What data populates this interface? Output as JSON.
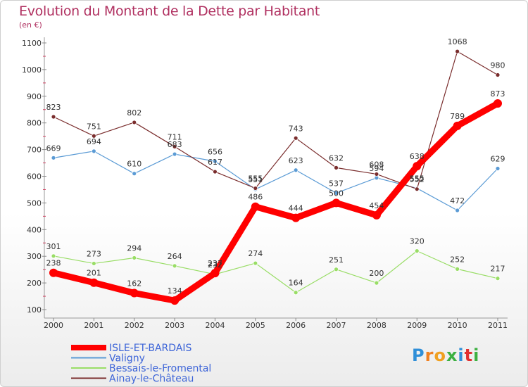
{
  "header": {
    "title": "Evolution du Montant de la Dette par Habitant",
    "subtitle": "(en €)"
  },
  "logo": {
    "text": "Proxiti",
    "letters": [
      {
        "ch": "P",
        "color": "#2f8fd8"
      },
      {
        "ch": "r",
        "color": "#f08020"
      },
      {
        "ch": "o",
        "color": "#f0a020"
      },
      {
        "ch": "x",
        "color": "#3cb040"
      },
      {
        "ch": "i",
        "color": "#2f8fd8"
      },
      {
        "ch": "t",
        "color": "#e03030"
      },
      {
        "ch": "i",
        "color": "#3cb040"
      }
    ]
  },
  "chart_data": {
    "type": "line",
    "title": "Evolution du Montant de la Dette par Habitant",
    "ylabel": "(en €)",
    "xlabel": "",
    "ylim": [
      100,
      1100
    ],
    "yticks": [
      100,
      200,
      300,
      400,
      500,
      600,
      700,
      800,
      900,
      1000,
      1100
    ],
    "categories": [
      "2000",
      "2001",
      "2002",
      "2003",
      "2004",
      "2005",
      "2006",
      "2007",
      "2008",
      "2009",
      "2010",
      "2011"
    ],
    "grid": false,
    "legend_position": "bottom-left",
    "series": [
      {
        "name": "ISLE-ET-BARDAIS",
        "color": "#ff0000",
        "emphasis": true,
        "values": [
          238,
          201,
          162,
          134,
          237,
          486,
          444,
          500,
          454,
          638,
          789,
          873
        ]
      },
      {
        "name": "Valigny",
        "color": "#5b9bd5",
        "emphasis": false,
        "values": [
          669,
          694,
          610,
          683,
          656,
          551,
          623,
          537,
          594,
          555,
          472,
          629
        ]
      },
      {
        "name": "Bessais-le-Fromental",
        "color": "#99dd66",
        "emphasis": false,
        "values": [
          301,
          273,
          294,
          264,
          232,
          274,
          164,
          251,
          200,
          320,
          252,
          217
        ]
      },
      {
        "name": "Ainay-le-Château",
        "color": "#7a2d2d",
        "emphasis": false,
        "values": [
          823,
          751,
          802,
          711,
          617,
          555,
          743,
          632,
          608,
          552,
          1068,
          980
        ]
      }
    ]
  }
}
